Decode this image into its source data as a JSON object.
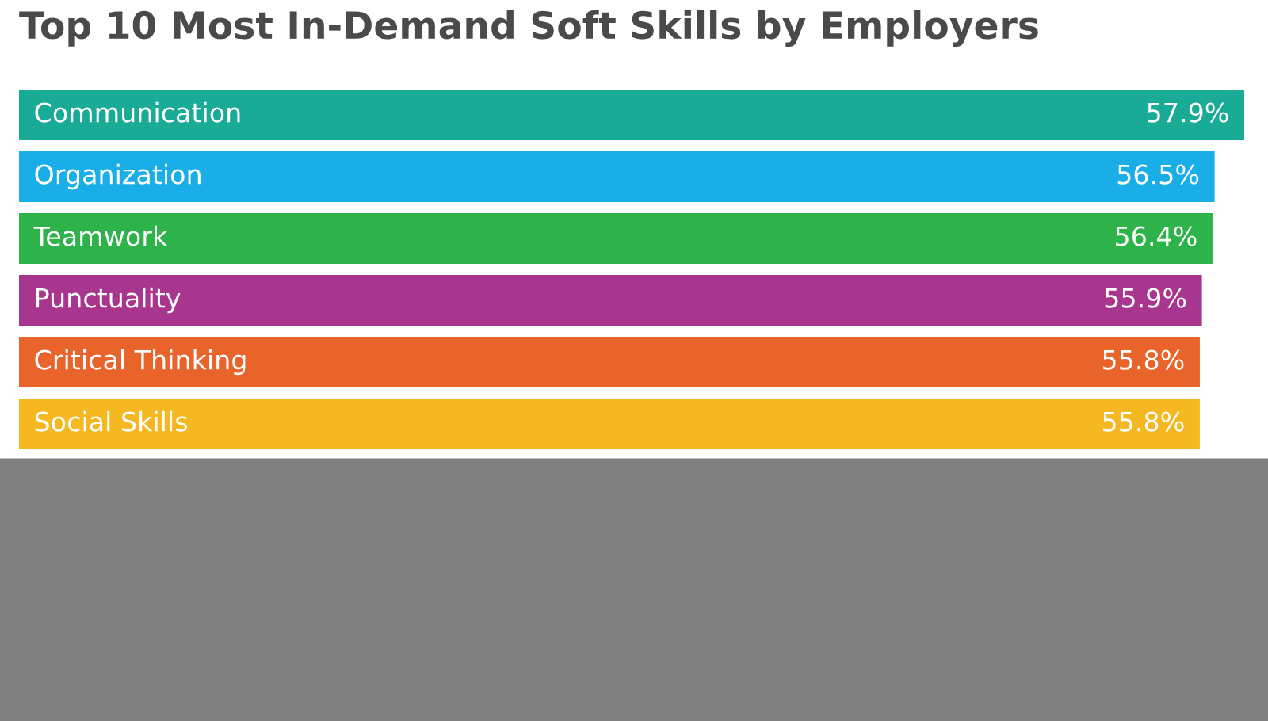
{
  "chart_data": {
    "type": "bar",
    "orientation": "horizontal",
    "title": "Top 10 Most In-Demand Soft Skills by Employers",
    "categories": [
      "Communication",
      "Organization",
      "Teamwork",
      "Punctuality",
      "Critical Thinking",
      "Social Skills"
    ],
    "values": [
      57.9,
      56.5,
      56.4,
      55.9,
      55.8,
      55.8
    ],
    "value_labels": [
      "57.9%",
      "56.5%",
      "56.4%",
      "55.9%",
      "55.8%",
      "55.8%"
    ],
    "colors": [
      "#1aab96",
      "#1aaee8",
      "#2db34a",
      "#a8368f",
      "#e9642a",
      "#f6b820"
    ],
    "legend": false
  }
}
